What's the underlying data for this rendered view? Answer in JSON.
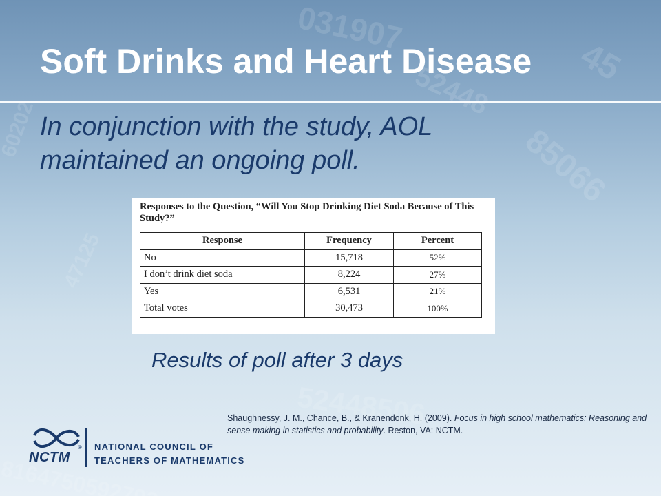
{
  "slide": {
    "title": "Soft Drinks and Heart Disease",
    "subtitle": "In conjunction with the study, AOL maintained an ongoing poll.",
    "results_caption": "Results of poll after 3 days"
  },
  "table": {
    "caption": "Responses to the Question, “Will You Stop Drinking Diet Soda Because of This Study?”",
    "headers": [
      "Response",
      "Frequency",
      "Percent"
    ],
    "rows": [
      {
        "response": "No",
        "frequency": "15,718",
        "percent": "52%"
      },
      {
        "response": "I don’t drink diet soda",
        "frequency": "8,224",
        "percent": "27%"
      },
      {
        "response": "Yes",
        "frequency": "6,531",
        "percent": "21%"
      },
      {
        "response": "Total votes",
        "frequency": "30,473",
        "percent": "100%"
      }
    ]
  },
  "citation": {
    "authors": "Shaughnessy, J. M., Chance, B., & Kranendonk, H. (2009). ",
    "book_title": "Focus in high school mathematics: Reasoning and sense making in statistics and probability",
    "publisher": ". Reston, VA: NCTM."
  },
  "logo": {
    "acronym": "NCTM",
    "registered": "®",
    "line1": "NATIONAL COUNCIL OF",
    "line2": "TEACHERS OF MATHEMATICS"
  },
  "colors": {
    "title": "#ffffff",
    "body_text": "#1a3a6b",
    "background_top": "#6f93b6",
    "background_bottom": "#e6eff6"
  }
}
